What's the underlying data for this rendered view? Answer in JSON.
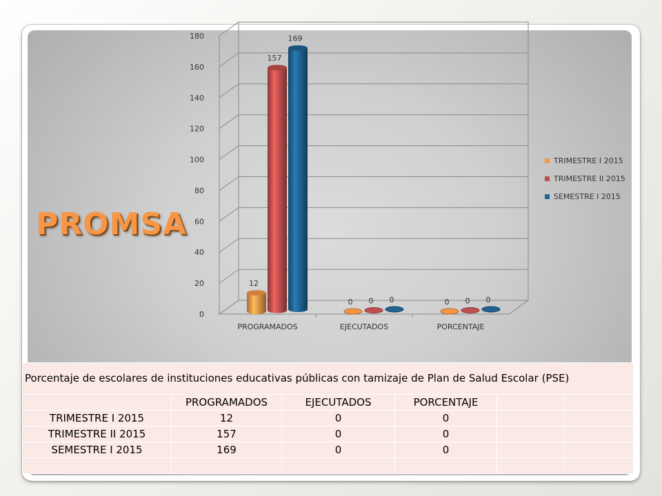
{
  "slide": {
    "title": "PROMSA"
  },
  "chart_data": {
    "type": "bar",
    "categories": [
      "PROGRAMADOS",
      "EJECUTADOS",
      "PORCENTAJE"
    ],
    "series": [
      {
        "name": "TRIMESTRE I 2015",
        "values": [
          12,
          0,
          0
        ],
        "color": "#f79646"
      },
      {
        "name": "TRIMESTRE II 2015",
        "values": [
          157,
          0,
          0
        ],
        "color": "#c0504d"
      },
      {
        "name": "SEMESTRE I 2015",
        "values": [
          169,
          0,
          0
        ],
        "color": "#1f6391"
      }
    ],
    "ylim": [
      0,
      180
    ],
    "yticks": [
      0,
      20,
      40,
      60,
      80,
      100,
      120,
      140,
      160,
      180
    ],
    "grid": true,
    "legend_position": "right",
    "data_labels": true,
    "style": "3d-cylinder"
  },
  "table": {
    "caption": "Porcentaje de escolares de instituciones educativas públicas con tamizaje de Plan de Salud Escolar (PSE)",
    "headers": [
      "",
      "PROGRAMADOS",
      "EJECUTADOS",
      "PORCENTAJE",
      "",
      ""
    ],
    "rows": [
      [
        "TRIMESTRE I 2015",
        "12",
        "0",
        "0",
        "",
        ""
      ],
      [
        "TRIMESTRE II 2015",
        "157",
        "0",
        "0",
        "",
        ""
      ],
      [
        "SEMESTRE I 2015",
        "169",
        "0",
        "0",
        "",
        ""
      ],
      [
        "",
        "",
        "",
        "",
        "",
        ""
      ]
    ]
  }
}
